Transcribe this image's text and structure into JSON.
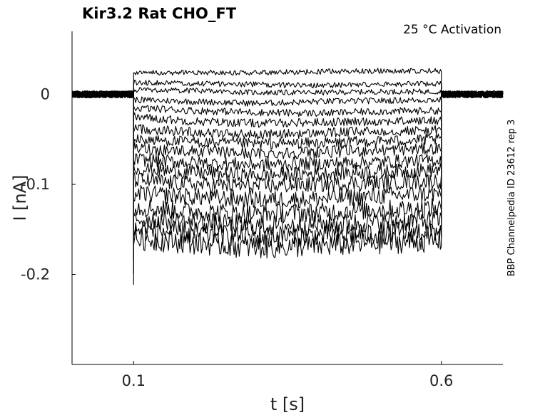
{
  "chart_data": {
    "type": "line",
    "title": "Kir3.2  Rat  CHO_FT",
    "subtitle": "25 °C  Activation",
    "xlabel": "t [s]",
    "ylabel": "I [nA]",
    "side_note": "BBP Channelpedia ID 23612 rep 3",
    "xlim": [
      0.0,
      0.7
    ],
    "ylim": [
      -0.3,
      0.07
    ],
    "xticks": [
      {
        "value": 0.1,
        "label": "0.1"
      },
      {
        "value": 0.6,
        "label": "0.6"
      }
    ],
    "yticks": [
      {
        "value": 0,
        "label": "0"
      },
      {
        "value": -0.1,
        "label": "-0.1"
      },
      {
        "value": -0.2,
        "label": "-0.2"
      }
    ],
    "stimulus_window_s": [
      0.1,
      0.6
    ],
    "series": [
      {
        "x": [
          0.0,
          0.1,
          0.1,
          0.2,
          0.3,
          0.4,
          0.5,
          0.6,
          0.6,
          0.7
        ],
        "y": [
          0.0,
          0.0,
          0.024,
          0.024,
          0.024,
          0.025,
          0.026,
          0.026,
          0.0,
          0.0
        ]
      },
      {
        "x": [
          0.0,
          0.1,
          0.1,
          0.2,
          0.3,
          0.4,
          0.5,
          0.6,
          0.6,
          0.7
        ],
        "y": [
          0.0,
          0.0,
          0.013,
          0.012,
          0.011,
          0.01,
          0.011,
          0.012,
          0.0,
          0.0
        ]
      },
      {
        "x": [
          0.0,
          0.1,
          0.1,
          0.2,
          0.3,
          0.4,
          0.5,
          0.6,
          0.6,
          0.7
        ],
        "y": [
          0.0,
          0.0,
          0.005,
          0.004,
          0.002,
          0.002,
          0.003,
          0.003,
          0.0,
          0.0
        ]
      },
      {
        "x": [
          0.0,
          0.1,
          0.1,
          0.2,
          0.3,
          0.4,
          0.5,
          0.6,
          0.6,
          0.7
        ],
        "y": [
          0.0,
          0.0,
          -0.006,
          -0.008,
          -0.01,
          -0.008,
          -0.007,
          -0.006,
          0.0,
          0.0
        ]
      },
      {
        "x": [
          0.0,
          0.1,
          0.1,
          0.2,
          0.3,
          0.4,
          0.5,
          0.6,
          0.6,
          0.7
        ],
        "y": [
          0.0,
          0.0,
          -0.015,
          -0.018,
          -0.02,
          -0.021,
          -0.019,
          -0.018,
          0.0,
          0.0
        ]
      },
      {
        "x": [
          0.0,
          0.1,
          0.1,
          0.2,
          0.3,
          0.4,
          0.5,
          0.6,
          0.6,
          0.7
        ],
        "y": [
          0.0,
          0.0,
          -0.025,
          -0.03,
          -0.032,
          -0.031,
          -0.03,
          -0.029,
          0.0,
          0.0
        ]
      },
      {
        "x": [
          0.0,
          0.1,
          0.1,
          0.2,
          0.3,
          0.4,
          0.5,
          0.6,
          0.6,
          0.7
        ],
        "y": [
          0.0,
          0.0,
          -0.038,
          -0.042,
          -0.045,
          -0.043,
          -0.041,
          -0.04,
          0.0,
          0.0
        ]
      },
      {
        "x": [
          0.0,
          0.1,
          0.1,
          0.2,
          0.3,
          0.4,
          0.5,
          0.6,
          0.6,
          0.7
        ],
        "y": [
          0.0,
          0.0,
          -0.05,
          -0.053,
          -0.055,
          -0.054,
          -0.052,
          -0.05,
          0.0,
          0.0
        ]
      },
      {
        "x": [
          0.0,
          0.1,
          0.1,
          0.2,
          0.3,
          0.4,
          0.5,
          0.6,
          0.6,
          0.7
        ],
        "y": [
          0.0,
          0.0,
          -0.06,
          -0.063,
          -0.066,
          -0.064,
          -0.062,
          -0.06,
          0.0,
          0.0
        ]
      },
      {
        "x": [
          0.0,
          0.1,
          0.1,
          0.2,
          0.3,
          0.4,
          0.5,
          0.6,
          0.6,
          0.7
        ],
        "y": [
          0.0,
          0.0,
          -0.072,
          -0.076,
          -0.078,
          -0.077,
          -0.075,
          -0.073,
          0.0,
          0.0
        ]
      },
      {
        "x": [
          0.0,
          0.1,
          0.1,
          0.2,
          0.3,
          0.4,
          0.5,
          0.6,
          0.6,
          0.7
        ],
        "y": [
          0.0,
          0.0,
          -0.082,
          -0.087,
          -0.09,
          -0.088,
          -0.086,
          -0.084,
          0.0,
          0.0
        ]
      },
      {
        "x": [
          0.0,
          0.1,
          0.1,
          0.2,
          0.3,
          0.4,
          0.5,
          0.6,
          0.6,
          0.7
        ],
        "y": [
          0.0,
          0.0,
          -0.095,
          -0.1,
          -0.102,
          -0.1,
          -0.098,
          -0.096,
          0.0,
          0.0
        ]
      },
      {
        "x": [
          0.0,
          0.1,
          0.1,
          0.2,
          0.3,
          0.4,
          0.5,
          0.6,
          0.6,
          0.7
        ],
        "y": [
          0.0,
          0.0,
          -0.11,
          -0.114,
          -0.117,
          -0.116,
          -0.113,
          -0.11,
          0.0,
          0.0
        ]
      },
      {
        "x": [
          0.0,
          0.1,
          0.1,
          0.2,
          0.3,
          0.4,
          0.5,
          0.6,
          0.6,
          0.7
        ],
        "y": [
          0.0,
          0.0,
          -0.125,
          -0.13,
          -0.133,
          -0.131,
          -0.128,
          -0.126,
          0.0,
          0.0
        ]
      },
      {
        "x": [
          0.0,
          0.1,
          0.1,
          0.2,
          0.3,
          0.4,
          0.5,
          0.6,
          0.6,
          0.7
        ],
        "y": [
          0.0,
          0.0,
          -0.138,
          -0.143,
          -0.146,
          -0.145,
          -0.142,
          -0.139,
          0.0,
          0.0
        ]
      },
      {
        "x": [
          0.0,
          0.1,
          0.1,
          0.2,
          0.3,
          0.4,
          0.5,
          0.6,
          0.6,
          0.7
        ],
        "y": [
          0.0,
          0.0,
          -0.15,
          -0.155,
          -0.158,
          -0.157,
          -0.154,
          -0.151,
          0.0,
          0.0
        ]
      },
      {
        "x": [
          0.0,
          0.1,
          0.1,
          0.2,
          0.3,
          0.4,
          0.5,
          0.6,
          0.6,
          0.7
        ],
        "y": [
          0.0,
          0.0,
          -0.16,
          -0.165,
          -0.17,
          -0.168,
          -0.165,
          -0.162,
          0.0,
          0.0
        ]
      }
    ]
  }
}
